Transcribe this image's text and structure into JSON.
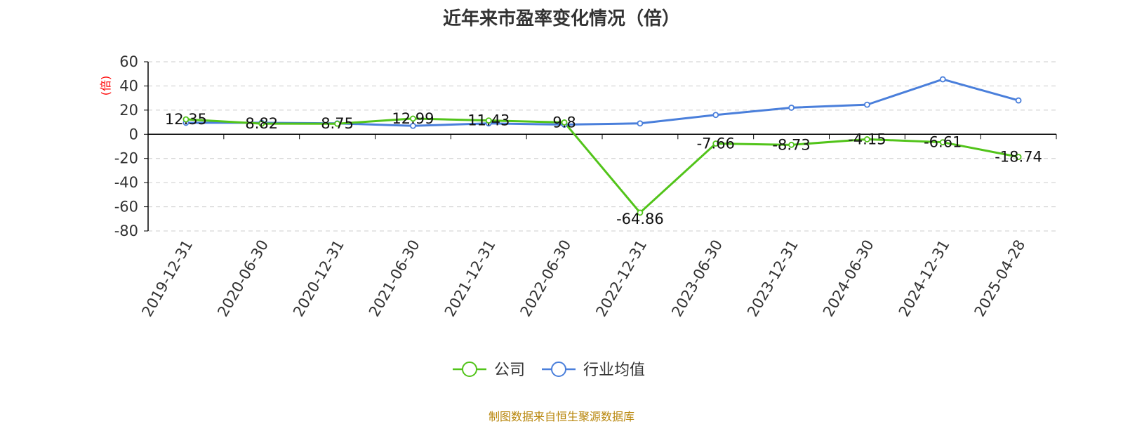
{
  "chart_data": {
    "type": "line",
    "title": "近年来市盈率变化情况（倍）",
    "ylabel": "(倍)",
    "ylim": [
      -80,
      60
    ],
    "yticks": [
      60,
      40,
      20,
      0,
      -20,
      -40,
      -60,
      -80
    ],
    "grid": true,
    "legend_position": "bottom-center",
    "categories": [
      "2019-12-31",
      "2020-06-30",
      "2020-12-31",
      "2021-06-30",
      "2021-12-31",
      "2022-06-30",
      "2022-12-31",
      "2023-06-30",
      "2023-12-31",
      "2024-06-30",
      "2024-12-31",
      "2025-04-28"
    ],
    "series": [
      {
        "name": "公司",
        "color": "#52c41a",
        "values": [
          12.35,
          8.82,
          8.75,
          12.99,
          11.43,
          9.8,
          -64.86,
          -7.66,
          -8.73,
          -4.15,
          -6.61,
          -18.74
        ],
        "labels": [
          "12.35",
          "8.82",
          "8.75",
          "12.99",
          "11.43",
          "9.8",
          "-64.86",
          "-7.66",
          "-8.73",
          "-4.15",
          "-6.61",
          "-18.74"
        ]
      },
      {
        "name": "行业均值",
        "color": "#4a7fdb",
        "values": [
          9.5,
          9.5,
          9.0,
          7.0,
          9.0,
          8.0,
          9.0,
          16.0,
          22.0,
          24.5,
          45.5,
          28.0
        ]
      }
    ]
  },
  "footer": {
    "source": "制图数据来自恒生聚源数据库"
  },
  "colors": {
    "axis": "#000000",
    "grid": "#cccccc",
    "ylabel": "#ff0000"
  }
}
